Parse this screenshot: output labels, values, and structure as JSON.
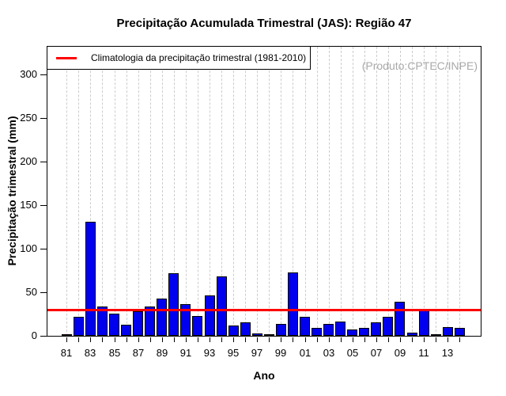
{
  "watermark": "(Produto:CPTEC/INPE)",
  "colors": {
    "bar_fill": "#0000ee",
    "bar_border": "#000000",
    "climatology_line": "#ff0000",
    "gridline": "#cccccc",
    "watermark_text": "#a9a9a9"
  },
  "chart_data": {
    "type": "bar",
    "title": "Precipitação Acumulada Trimestral (JAS): Região 47",
    "xlabel": "Ano",
    "ylabel": "Precipitação trimestral (mm)",
    "legend_label": "Climatologia da precipitação trimestral (1981-2010)",
    "legend_position": "top-left",
    "grid": "vertical-dashed",
    "categories": [
      1981,
      1982,
      1983,
      1984,
      1985,
      1986,
      1987,
      1988,
      1989,
      1990,
      1991,
      1992,
      1993,
      1994,
      1995,
      1996,
      1997,
      1998,
      1999,
      2000,
      2001,
      2002,
      2003,
      2004,
      2005,
      2006,
      2007,
      2008,
      2009,
      2010,
      2011,
      2012,
      2013,
      2014
    ],
    "values": [
      2,
      22,
      131,
      34,
      25,
      13,
      28,
      34,
      43,
      72,
      36,
      23,
      46,
      68,
      12,
      15,
      3,
      2,
      14,
      73,
      22,
      9,
      14,
      16,
      7,
      9,
      15,
      22,
      39,
      4,
      29,
      2,
      10,
      9
    ],
    "climatology_value": 30,
    "y_ticks": [
      0,
      50,
      100,
      150,
      200,
      250,
      300
    ],
    "x_tick_labels": [
      "81",
      "83",
      "85",
      "87",
      "89",
      "91",
      "93",
      "95",
      "97",
      "99",
      "01",
      "03",
      "05",
      "07",
      "09",
      "11",
      "13"
    ],
    "ylim": [
      0,
      333
    ]
  }
}
